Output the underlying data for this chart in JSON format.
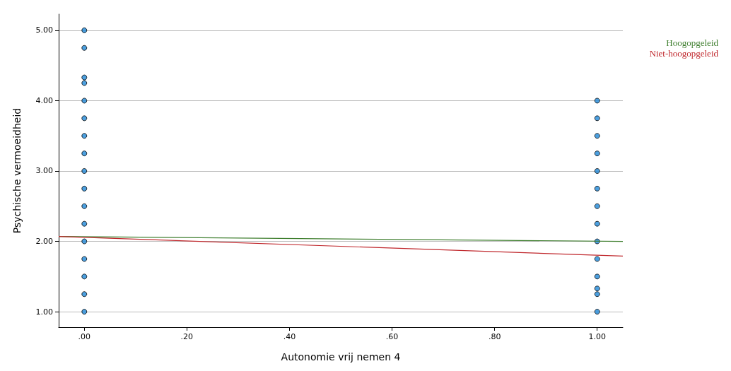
{
  "chart_data": {
    "type": "scatter",
    "xlabel": "Autonomie vrij nemen 4",
    "ylabel": "Psychische vermoeidheid",
    "xlim": [
      -0.05,
      1.05
    ],
    "ylim": [
      0.78,
      5.23
    ],
    "xticks": [
      {
        "value": 0,
        "label": ".00"
      },
      {
        "value": 0.2,
        "label": ".20"
      },
      {
        "value": 0.4,
        "label": ".40"
      },
      {
        "value": 0.6,
        "label": ".60"
      },
      {
        "value": 0.8,
        "label": ".80"
      },
      {
        "value": 1,
        "label": "1.00"
      }
    ],
    "yticks": [
      {
        "value": 1,
        "label": "1.00"
      },
      {
        "value": 2,
        "label": "2.00"
      },
      {
        "value": 3,
        "label": "3.00"
      },
      {
        "value": 4,
        "label": "4.00"
      },
      {
        "value": 5,
        "label": "5.00"
      }
    ],
    "grid": "y",
    "legend": "top right",
    "series": [
      {
        "marker": "circle",
        "color": "#1f88d8",
        "x": [
          0,
          0,
          0,
          0,
          0,
          0,
          0,
          0,
          0,
          0,
          0,
          0,
          0,
          0,
          0,
          0,
          0,
          1,
          1,
          1,
          1,
          1,
          1,
          1,
          1,
          1,
          1,
          1,
          1,
          1,
          1
        ],
        "values": [
          5,
          4.75,
          4.33,
          4.25,
          4,
          3.75,
          3.5,
          3.25,
          3,
          2.75,
          2.5,
          2.25,
          2,
          1.75,
          1.5,
          1.25,
          1,
          4,
          3.75,
          3.5,
          3.25,
          3,
          2.75,
          2.5,
          2.25,
          2,
          1.75,
          1.5,
          1.33,
          1.25,
          1
        ]
      },
      {
        "type": "line",
        "name": "Hoogopgeleid",
        "color": "#3f7f2f",
        "x": [
          -0.05,
          1.05
        ],
        "values": [
          2.07,
          2.0
        ]
      },
      {
        "type": "line",
        "name": "Niet-hoogopgeleid",
        "color": "#c0282d",
        "x": [
          -0.05,
          1.05
        ],
        "values": [
          2.07,
          1.79
        ]
      }
    ]
  }
}
